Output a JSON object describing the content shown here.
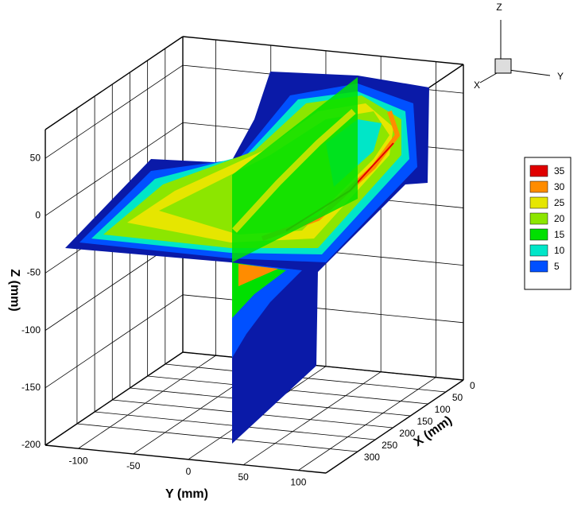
{
  "chart_data": {
    "type": "contour3d",
    "xlabel": "X (mm)",
    "ylabel": "Y (mm)",
    "zlabel": "Z (mm)",
    "xlim": [
      0,
      390
    ],
    "xticks": [
      0,
      50,
      100,
      150,
      200,
      250,
      300
    ],
    "ylim": [
      -130,
      125
    ],
    "yticks": [
      -100,
      -50,
      0,
      50,
      100
    ],
    "zlim": [
      -200,
      75
    ],
    "zticks": [
      50,
      0,
      -50,
      -100,
      -150,
      -200
    ],
    "grid": true,
    "triad_labels": [
      "X",
      "Y",
      "Z"
    ],
    "legend": {
      "levels": [
        35,
        30,
        25,
        20,
        15,
        10,
        5
      ],
      "colors": [
        "#e00000",
        "#ff8c00",
        "#e6e600",
        "#8ce600",
        "#00e000",
        "#00e6c8",
        "#0050ff"
      ]
    }
  }
}
